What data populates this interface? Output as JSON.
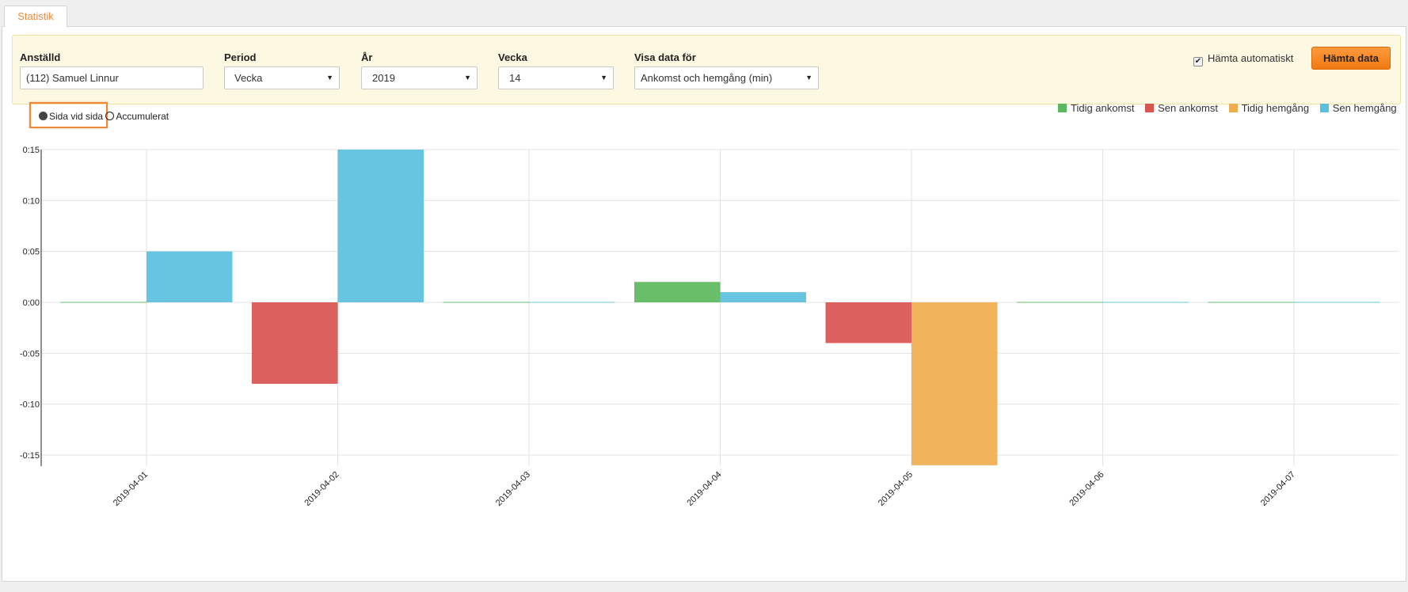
{
  "tab": {
    "label": "Statistik"
  },
  "filters": {
    "employee": {
      "label": "Anställd",
      "value": "(112) Samuel Linnur"
    },
    "period": {
      "label": "Period",
      "value": "Vecka"
    },
    "year": {
      "label": "År",
      "value": "2019"
    },
    "week": {
      "label": "Vecka",
      "value": "14"
    },
    "show_data": {
      "label": "Visa data för",
      "value": "Ankomst och hemgång (min)"
    },
    "auto_fetch": {
      "label": "Hämta automatiskt",
      "checked": true
    },
    "fetch_button": {
      "label": "Hämta data"
    }
  },
  "view_mode": {
    "side_by_side": "Sida vid sida",
    "accumulated": "Accumulerat",
    "selected": "side_by_side"
  },
  "chart_data": {
    "type": "bar",
    "categories": [
      "2019-04-01",
      "2019-04-02",
      "2019-04-03",
      "2019-04-04",
      "2019-04-05",
      "2019-04-06",
      "2019-04-07"
    ],
    "series": [
      {
        "name": "Tidig ankomst",
        "color": "#5cb85c",
        "values": [
          0,
          0,
          0,
          0.02,
          0,
          0,
          0
        ]
      },
      {
        "name": "Sen ankomst",
        "color": "#d9534f",
        "values": [
          0,
          -0.08,
          0,
          0,
          -0.04,
          0,
          0
        ]
      },
      {
        "name": "Tidig hemgång",
        "color": "#f0ad4e",
        "values": [
          0,
          0,
          0,
          0,
          -0.16,
          0,
          0
        ]
      },
      {
        "name": "Sen hemgång",
        "color": "#5bc0de",
        "values": [
          0.05,
          0.15,
          0,
          0.01,
          0,
          0,
          0
        ]
      }
    ],
    "y_ticks": [
      "0:15",
      "0:10",
      "0:05",
      "0:00",
      "-0:05",
      "-0:10",
      "-0:15"
    ],
    "y_tick_values": [
      0.15,
      0.1,
      0.05,
      0,
      -0.05,
      -0.1,
      -0.15
    ],
    "ylim": [
      -0.16,
      0.15
    ],
    "grid": true,
    "legend_position": "top-right"
  }
}
